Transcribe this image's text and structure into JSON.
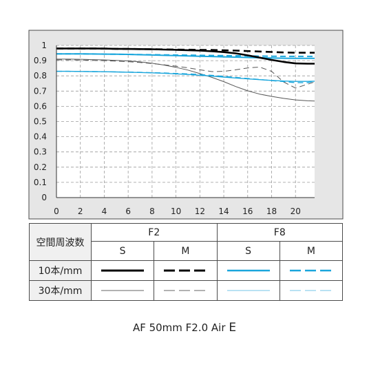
{
  "chart_data": {
    "type": "line",
    "x": [
      0,
      1,
      2,
      3,
      4,
      5,
      6,
      7,
      8,
      9,
      10,
      11,
      12,
      13,
      14,
      15,
      16,
      17,
      18,
      19,
      20,
      21,
      21.6
    ],
    "xlim": [
      0,
      21.6
    ],
    "ylim": [
      0,
      1
    ],
    "xticks": [
      "0",
      "2",
      "4",
      "6",
      "8",
      "10",
      "12",
      "14",
      "16",
      "18",
      "20"
    ],
    "xtick_values": [
      0,
      2,
      4,
      6,
      8,
      10,
      12,
      14,
      16,
      18,
      20
    ],
    "yticks": [
      "0",
      "0.1",
      "0.2",
      "0.3",
      "0.4",
      "0.5",
      "0.6",
      "0.7",
      "0.8",
      "0.9",
      "1"
    ],
    "ytick_values": [
      0,
      0.1,
      0.2,
      0.3,
      0.4,
      0.5,
      0.6,
      0.7,
      0.8,
      0.9,
      1
    ],
    "grid": true,
    "series": [
      {
        "aperture": "F2",
        "frequency": "10本/mm",
        "orientation": "S",
        "color": "#000000",
        "dashed": false,
        "width": 2.6,
        "values": [
          0.98,
          0.98,
          0.98,
          0.98,
          0.979,
          0.978,
          0.977,
          0.976,
          0.975,
          0.973,
          0.971,
          0.969,
          0.966,
          0.962,
          0.956,
          0.948,
          0.935,
          0.92,
          0.905,
          0.892,
          0.882,
          0.88,
          0.88
        ]
      },
      {
        "aperture": "F2",
        "frequency": "10本/mm",
        "orientation": "M",
        "color": "#000000",
        "dashed": true,
        "width": 2.6,
        "values": [
          0.98,
          0.98,
          0.98,
          0.98,
          0.979,
          0.978,
          0.977,
          0.976,
          0.975,
          0.974,
          0.973,
          0.972,
          0.971,
          0.97,
          0.968,
          0.966,
          0.963,
          0.96,
          0.957,
          0.954,
          0.952,
          0.952,
          0.952
        ]
      },
      {
        "aperture": "F2",
        "frequency": "30本/mm",
        "orientation": "S",
        "color": "#555555",
        "dashed": false,
        "width": 1,
        "values": [
          0.91,
          0.91,
          0.909,
          0.907,
          0.905,
          0.902,
          0.898,
          0.892,
          0.883,
          0.871,
          0.856,
          0.838,
          0.815,
          0.79,
          0.762,
          0.73,
          0.702,
          0.68,
          0.665,
          0.652,
          0.642,
          0.636,
          0.635
        ]
      },
      {
        "aperture": "F2",
        "frequency": "30本/mm",
        "orientation": "M",
        "color": "#555555",
        "dashed": true,
        "width": 1,
        "values": [
          0.905,
          0.905,
          0.904,
          0.902,
          0.9,
          0.897,
          0.893,
          0.888,
          0.881,
          0.873,
          0.864,
          0.853,
          0.84,
          0.828,
          0.83,
          0.84,
          0.852,
          0.858,
          0.83,
          0.76,
          0.72,
          0.745,
          0.76
        ]
      },
      {
        "aperture": "F8",
        "frequency": "10本/mm",
        "orientation": "S",
        "color": "#1aa6dc",
        "dashed": false,
        "width": 2,
        "values": [
          0.945,
          0.945,
          0.945,
          0.944,
          0.943,
          0.942,
          0.941,
          0.939,
          0.937,
          0.935,
          0.933,
          0.931,
          0.929,
          0.927,
          0.925,
          0.923,
          0.921,
          0.919,
          0.917,
          0.916,
          0.915,
          0.915,
          0.915
        ]
      },
      {
        "aperture": "F8",
        "frequency": "10本/mm",
        "orientation": "M",
        "color": "#1aa6dc",
        "dashed": true,
        "width": 2,
        "values": [
          0.945,
          0.945,
          0.945,
          0.944,
          0.943,
          0.942,
          0.941,
          0.94,
          0.939,
          0.938,
          0.937,
          0.936,
          0.935,
          0.934,
          0.933,
          0.932,
          0.931,
          0.93,
          0.929,
          0.928,
          0.928,
          0.928,
          0.928
        ]
      },
      {
        "aperture": "F8",
        "frequency": "30本/mm",
        "orientation": "S",
        "color": "#1aa6dc",
        "dashed": false,
        "width": 1.4,
        "values": [
          0.83,
          0.83,
          0.829,
          0.828,
          0.827,
          0.826,
          0.824,
          0.822,
          0.82,
          0.817,
          0.813,
          0.809,
          0.804,
          0.798,
          0.792,
          0.786,
          0.78,
          0.775,
          0.77,
          0.766,
          0.764,
          0.764,
          0.765
        ]
      },
      {
        "aperture": "F8",
        "frequency": "30本/mm",
        "orientation": "M",
        "color": "#1aa6dc",
        "dashed": true,
        "width": 1.4,
        "values": [
          0.83,
          0.83,
          0.829,
          0.828,
          0.827,
          0.826,
          0.825,
          0.823,
          0.821,
          0.819,
          0.816,
          0.813,
          0.809,
          0.803,
          0.797,
          0.79,
          0.783,
          0.776,
          0.769,
          0.763,
          0.755,
          0.755,
          0.765
        ]
      }
    ]
  },
  "legend": {
    "header_label": "空間周波数",
    "aperture_f2": "F2",
    "aperture_f8": "F8",
    "sagittal": "S",
    "meridional": "M",
    "row_10": "10本/mm",
    "row_30": "30本/mm"
  },
  "caption": {
    "text": "AF 50mm F2.0 Air",
    "mark": "E"
  }
}
